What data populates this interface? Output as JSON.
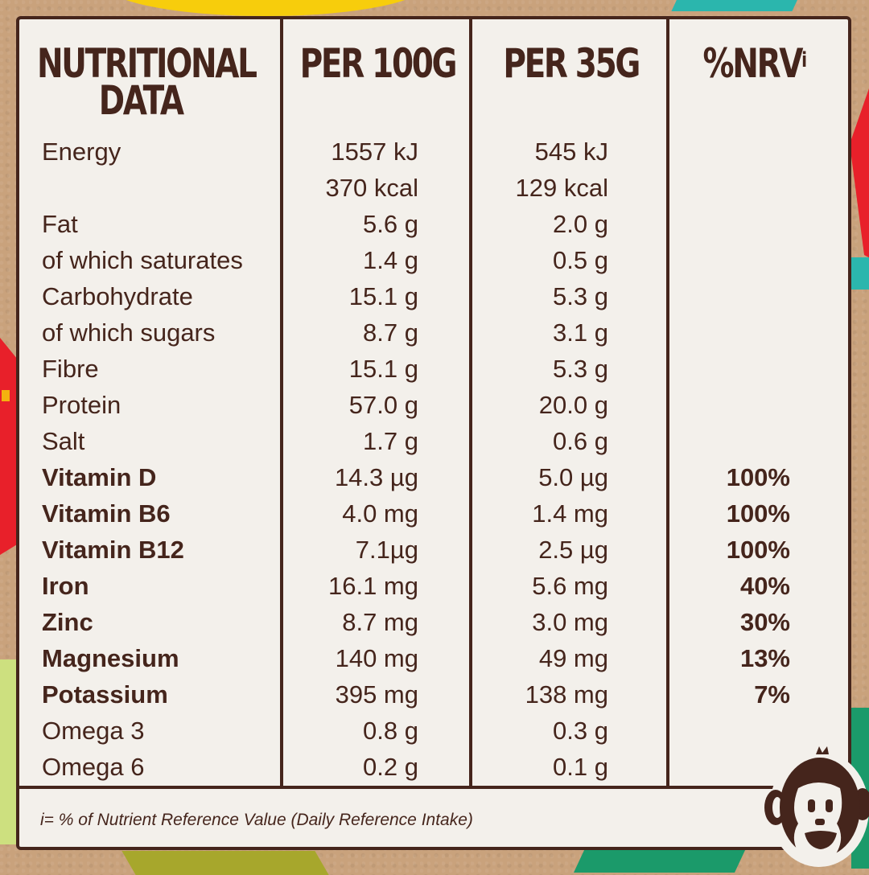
{
  "header": {
    "col1": "NUTRITIONAL DATA",
    "col1_line1": "NUTRITIONAL",
    "col1_line2": "DATA",
    "col2": "PER 100G",
    "col3": "PER 35G",
    "col4": "%NRV",
    "col4_sup": "i"
  },
  "rows": [
    {
      "name": "Energy",
      "per100": "1557 kJ",
      "per35": "545 kJ",
      "nrv": "",
      "bold": false
    },
    {
      "name": "",
      "per100": "370 kcal",
      "per35": "129 kcal",
      "nrv": "",
      "bold": false
    },
    {
      "name": "Fat",
      "per100": "5.6 g",
      "per35": "2.0 g",
      "nrv": "",
      "bold": false
    },
    {
      "name": "of which saturates",
      "per100": "1.4 g",
      "per35": "0.5 g",
      "nrv": "",
      "bold": false
    },
    {
      "name": "Carbohydrate",
      "per100": "15.1 g",
      "per35": "5.3 g",
      "nrv": "",
      "bold": false
    },
    {
      "name": "of which sugars",
      "per100": "8.7 g",
      "per35": "3.1 g",
      "nrv": "",
      "bold": false
    },
    {
      "name": "Fibre",
      "per100": "15.1 g",
      "per35": "5.3 g",
      "nrv": "",
      "bold": false
    },
    {
      "name": "Protein",
      "per100": "57.0 g",
      "per35": "20.0 g",
      "nrv": "",
      "bold": false
    },
    {
      "name": "Salt",
      "per100": "1.7 g",
      "per35": "0.6 g",
      "nrv": "",
      "bold": false
    },
    {
      "name": "Vitamin D",
      "per100": "14.3 µg",
      "per35": "5.0 µg",
      "nrv": "100%",
      "bold": true
    },
    {
      "name": "Vitamin B6",
      "per100": "4.0 mg",
      "per35": "1.4 mg",
      "nrv": "100%",
      "bold": true
    },
    {
      "name": "Vitamin B12",
      "per100": "7.1µg",
      "per35": "2.5 µg",
      "nrv": "100%",
      "bold": true
    },
    {
      "name": "Iron",
      "per100": "16.1 mg",
      "per35": "5.6 mg",
      "nrv": "40%",
      "bold": true
    },
    {
      "name": "Zinc",
      "per100": "8.7 mg",
      "per35": "3.0 mg",
      "nrv": "30%",
      "bold": true
    },
    {
      "name": "Magnesium",
      "per100": "140 mg",
      "per35": "49 mg",
      "nrv": "13%",
      "bold": true
    },
    {
      "name": "Potassium",
      "per100": "395 mg",
      "per35": "138 mg",
      "nrv": "7%",
      "bold": true
    },
    {
      "name": "Omega 3",
      "per100": "0.8 g",
      "per35": "0.3 g",
      "nrv": "",
      "bold": false
    },
    {
      "name": "Omega 6",
      "per100": "0.2 g",
      "per35": "0.1 g",
      "nrv": "",
      "bold": false
    }
  ],
  "footnote": "i= % of Nutrient Reference Value (Daily Reference Intake)",
  "mascot": {
    "icon": "monkey-face-icon"
  },
  "colors": {
    "text": "#45251c",
    "panel": "#f3f0eb",
    "background": "#c9a27c",
    "accent_red": "#e8202a",
    "accent_yellow": "#f7cd0c",
    "accent_teal": "#2bb6ad",
    "accent_green": "#1b9a6a",
    "accent_lime": "#cde07f"
  }
}
